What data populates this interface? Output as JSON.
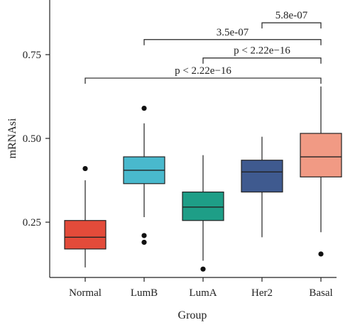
{
  "chart_data": {
    "type": "boxplot",
    "xlabel": "Group",
    "ylabel": "mRNAsi",
    "ylim": [
      0.085,
      0.745
    ],
    "yticks": [
      0.25,
      0.5,
      0.75
    ],
    "ytick_labels": [
      "0.25",
      "0.50",
      "0.75"
    ],
    "categories": [
      "Normal",
      "LumB",
      "LumA",
      "Her2",
      "Basal"
    ],
    "boxes": [
      {
        "name": "Normal",
        "color": "#e34b3a",
        "whisker_low": 0.115,
        "q1": 0.17,
        "median": 0.205,
        "q3": 0.255,
        "whisker_high": 0.375,
        "outliers": [
          0.41
        ]
      },
      {
        "name": "LumB",
        "color": "#49b9cd",
        "whisker_low": 0.265,
        "q1": 0.365,
        "median": 0.405,
        "q3": 0.445,
        "whisker_high": 0.545,
        "outliers": [
          0.59,
          0.21,
          0.19
        ]
      },
      {
        "name": "LumA",
        "color": "#1e9e87",
        "whisker_low": 0.135,
        "q1": 0.255,
        "median": 0.295,
        "q3": 0.34,
        "whisker_high": 0.45,
        "outliers": [
          0.11
        ]
      },
      {
        "name": "Her2",
        "color": "#3f5a8f",
        "whisker_low": 0.205,
        "q1": 0.34,
        "median": 0.4,
        "q3": 0.435,
        "whisker_high": 0.505,
        "outliers": []
      },
      {
        "name": "Basal",
        "color": "#f19a84",
        "whisker_low": 0.22,
        "q1": 0.385,
        "median": 0.445,
        "q3": 0.515,
        "whisker_high": 0.655,
        "outliers": [
          0.155
        ]
      }
    ],
    "comparisons": [
      {
        "from": "Her2",
        "to": "Basal",
        "level": 0.845,
        "label": "5.8e-07"
      },
      {
        "from": "LumB",
        "to": "Basal",
        "level": 0.795,
        "label": "3.5e-07"
      },
      {
        "from": "LumA",
        "to": "Basal",
        "level": 0.74,
        "label": "p < 2.22e−16"
      },
      {
        "from": "Normal",
        "to": "Basal",
        "level": 0.68,
        "label": "p < 2.22e−16"
      }
    ]
  }
}
